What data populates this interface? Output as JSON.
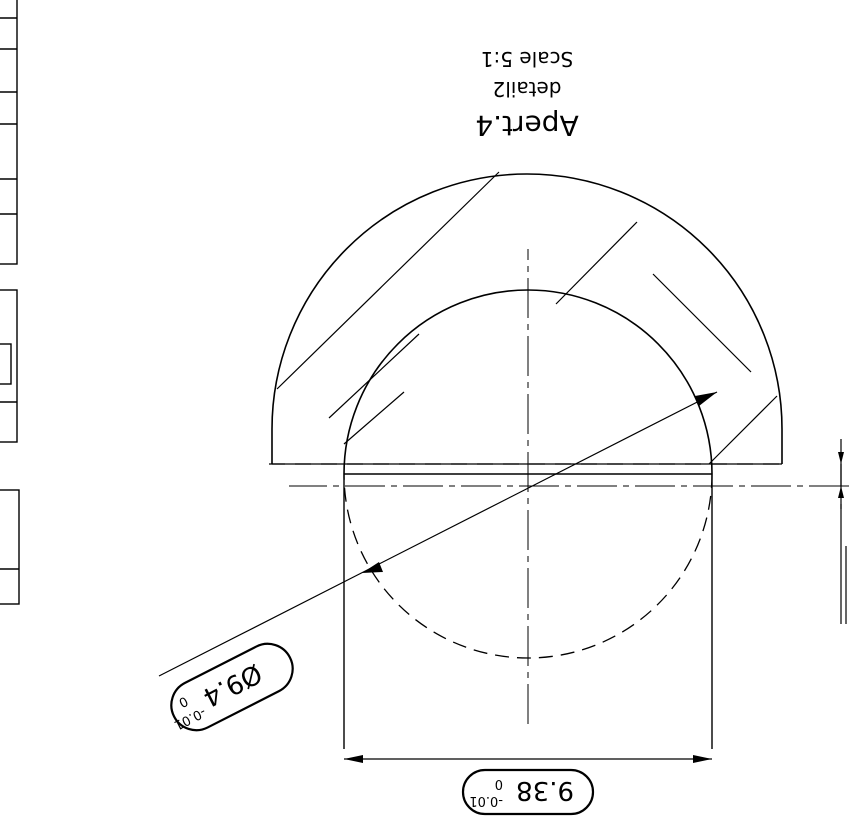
{
  "detail": {
    "title": "Apert.4",
    "subtitle": "detail2",
    "scale": "Scale 5:1"
  },
  "dimensions": {
    "diameter": {
      "main": "Ø9.4",
      "upper": "0",
      "lower": "-0.01"
    },
    "width": {
      "main": "9.38",
      "upper": "0",
      "lower": "-0.01"
    }
  },
  "colors": {
    "ink": "#000000",
    "paper": "#ffffff"
  }
}
